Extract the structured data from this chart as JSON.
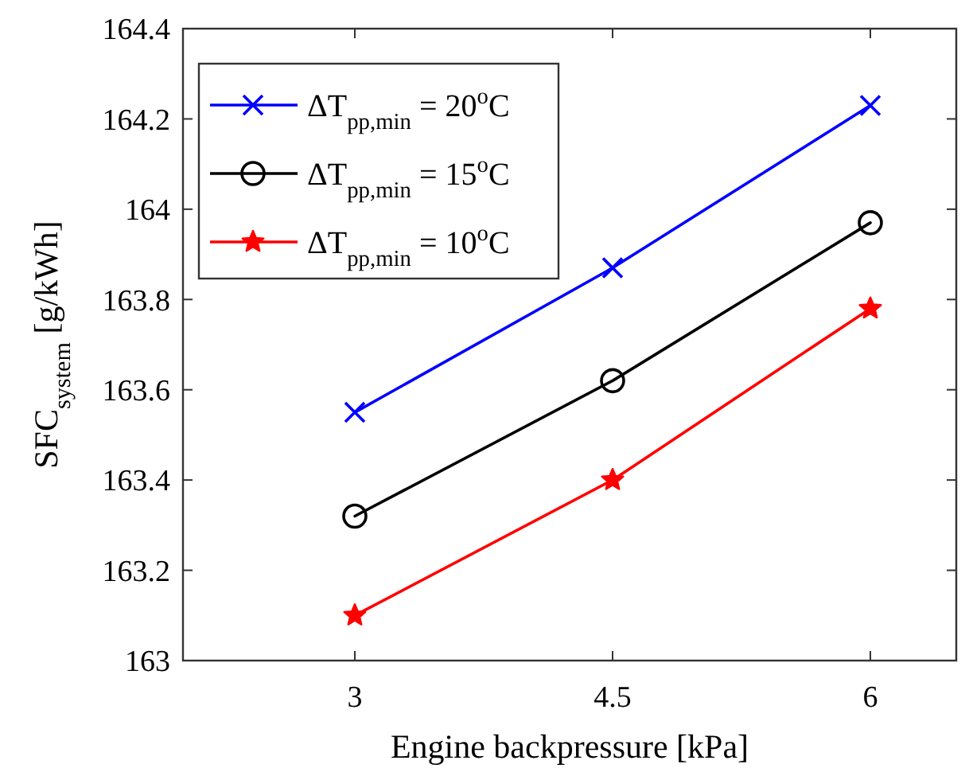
{
  "chart_data": {
    "type": "line",
    "xlabel": "Engine backpressure [kPa]",
    "ylabel": "SFC$_{system}$ [g/kWh]",
    "x": [
      3,
      4.5,
      6
    ],
    "series": [
      {
        "name": "ΔT$_{pp,min}$ = 20$^{o}$C",
        "color": "#0000ff",
        "marker": "cross",
        "values": [
          163.55,
          163.87,
          164.23
        ]
      },
      {
        "name": "ΔT$_{pp,min}$ = 15$^{o}$C",
        "color": "#000000",
        "marker": "circle",
        "values": [
          163.32,
          163.62,
          163.97
        ]
      },
      {
        "name": "ΔT$_{pp,min}$ = 10$^{o}$C",
        "color": "#ff0000",
        "marker": "star",
        "values": [
          163.1,
          163.4,
          163.78
        ]
      }
    ],
    "xlim": [
      2,
      6.5
    ],
    "xticks": [
      3,
      4.5,
      6
    ],
    "ylim": [
      163,
      164.4
    ],
    "yticks": [
      163,
      163.2,
      163.4,
      163.6,
      163.8,
      164,
      164.2,
      164.4
    ],
    "grid": false,
    "legend": "top left",
    "line_style": "solid"
  }
}
